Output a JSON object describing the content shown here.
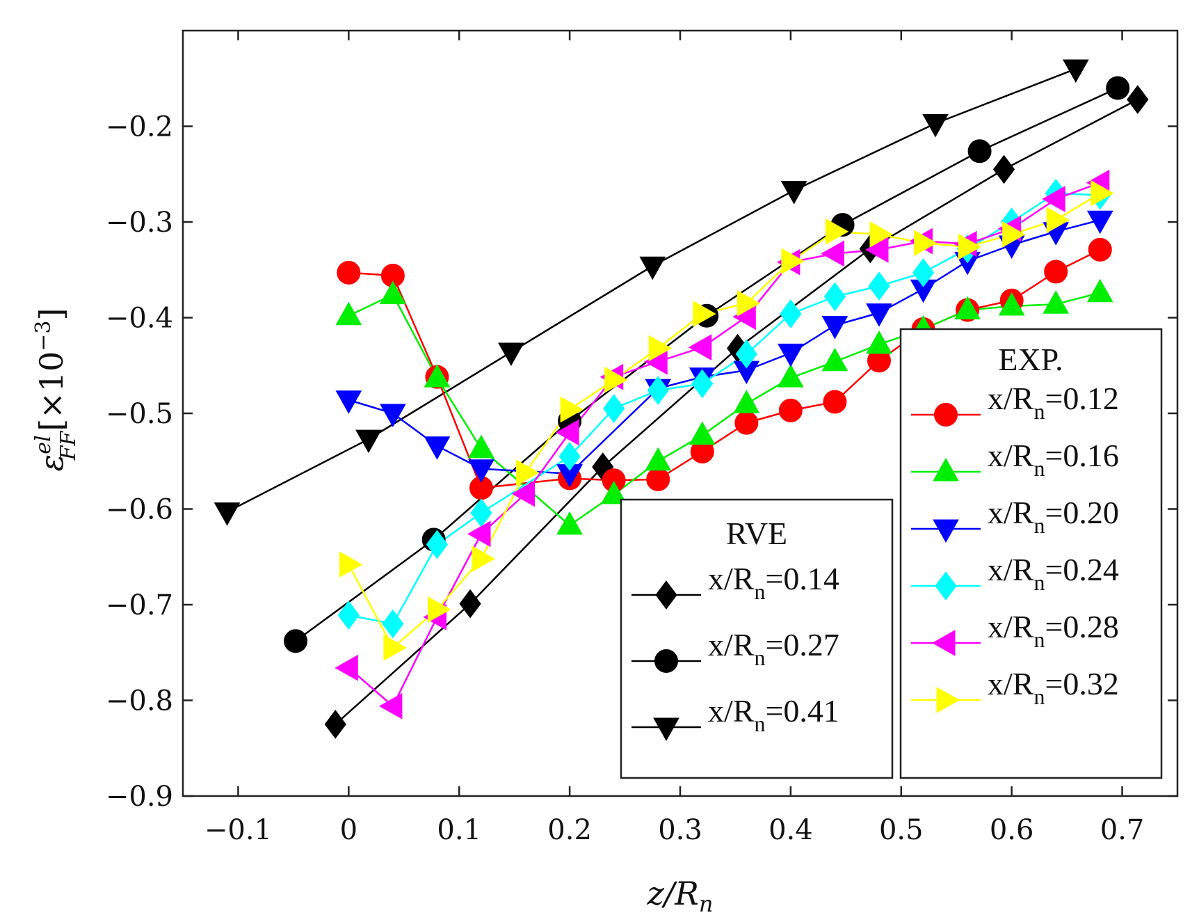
{
  "chart_data": {
    "type": "line",
    "xlabel": "z/R",
    "xlabel_sub": "n",
    "ylabel": "ε",
    "ylabel_sup": "el",
    "ylabel_sub": "FF",
    "ylabel_unit": "[×10",
    "ylabel_unit_exp": "−3",
    "ylabel_unit_close": "]",
    "xlim": [
      -0.15,
      0.75
    ],
    "ylim": [
      -0.9,
      -0.1
    ],
    "xticks": [
      -0.1,
      0,
      0.1,
      0.2,
      0.3,
      0.4,
      0.5,
      0.6,
      0.7
    ],
    "xtick_labels": [
      "−0.1",
      "0",
      "0.1",
      "0.2",
      "0.3",
      "0.4",
      "0.5",
      "0.6",
      "0.7"
    ],
    "yticks": [
      -0.9,
      -0.8,
      -0.7,
      -0.6,
      -0.5,
      -0.4,
      -0.3,
      -0.2
    ],
    "ytick_labels": [
      "−0.9",
      "−0.8",
      "−0.7",
      "−0.6",
      "−0.5",
      "−0.4",
      "−0.3",
      "−0.2"
    ],
    "legends": [
      {
        "title": "RVE",
        "entries": [
          "x/R",
          "x/R",
          "x/R"
        ],
        "subs": [
          "n",
          "n",
          "n"
        ],
        "values": [
          "=0.14",
          "=0.27",
          "=0.41"
        ]
      },
      {
        "title": "EXP.",
        "entries": [
          "x/R",
          "x/R",
          "x/R",
          "x/R",
          "x/R",
          "x/R"
        ],
        "subs": [
          "n",
          "n",
          "n",
          "n",
          "n",
          "n"
        ],
        "values": [
          "=0.12",
          "=0.16",
          "=0.20",
          "=0.24",
          "=0.28",
          "=0.32"
        ]
      }
    ],
    "series": [
      {
        "name": "RVE x/Rn=0.14",
        "group": "RVE",
        "color": "#000000",
        "marker": "diamond",
        "x": [
          -0.012,
          0.11,
          0.23,
          0.352,
          0.472,
          0.593,
          0.714
        ],
        "y": [
          -0.825,
          -0.699,
          -0.556,
          -0.432,
          -0.328,
          -0.245,
          -0.172
        ]
      },
      {
        "name": "RVE x/Rn=0.27",
        "group": "RVE",
        "color": "#000000",
        "marker": "circle",
        "x": [
          -0.048,
          0.077,
          0.2,
          0.324,
          0.447,
          0.571,
          0.696
        ],
        "y": [
          -0.738,
          -0.632,
          -0.508,
          -0.398,
          -0.303,
          -0.226,
          -0.16
        ]
      },
      {
        "name": "RVE x/Rn=0.41",
        "group": "RVE",
        "color": "#000000",
        "marker": "triangle-down",
        "x": [
          -0.11,
          0.018,
          0.147,
          0.275,
          0.403,
          0.531,
          0.658
        ],
        "y": [
          -0.603,
          -0.527,
          -0.436,
          -0.346,
          -0.267,
          -0.197,
          -0.14
        ]
      },
      {
        "name": "EXP x/Rn=0.12",
        "group": "EXP",
        "color": "#ff0000",
        "marker": "circle",
        "x": [
          0,
          0.04,
          0.08,
          0.12,
          0.2,
          0.24,
          0.28,
          0.32,
          0.36,
          0.4,
          0.44,
          0.48,
          0.52,
          0.56,
          0.6,
          0.64,
          0.68
        ],
        "y": [
          -0.353,
          -0.356,
          -0.462,
          -0.578,
          -0.568,
          -0.57,
          -0.569,
          -0.54,
          -0.51,
          -0.497,
          -0.488,
          -0.445,
          -0.412,
          -0.392,
          -0.382,
          -0.352,
          -0.329
        ]
      },
      {
        "name": "EXP x/Rn=0.16",
        "group": "EXP",
        "color": "#00ee00",
        "marker": "triangle-up",
        "x": [
          0,
          0.04,
          0.08,
          0.12,
          0.2,
          0.24,
          0.28,
          0.32,
          0.36,
          0.4,
          0.44,
          0.48,
          0.52,
          0.56,
          0.6,
          0.64,
          0.68
        ],
        "y": [
          -0.398,
          -0.376,
          -0.463,
          -0.537,
          -0.617,
          -0.585,
          -0.55,
          -0.523,
          -0.49,
          -0.463,
          -0.446,
          -0.428,
          -0.412,
          -0.392,
          -0.388,
          -0.386,
          -0.374
        ]
      },
      {
        "name": "EXP x/Rn=0.20",
        "group": "EXP",
        "color": "#0000ff",
        "marker": "triangle-down",
        "x": [
          0,
          0.04,
          0.08,
          0.12,
          0.2,
          0.28,
          0.32,
          0.36,
          0.4,
          0.44,
          0.48,
          0.52,
          0.56,
          0.6,
          0.64,
          0.68
        ],
        "y": [
          -0.486,
          -0.5,
          -0.534,
          -0.558,
          -0.563,
          -0.474,
          -0.462,
          -0.455,
          -0.437,
          -0.408,
          -0.395,
          -0.37,
          -0.341,
          -0.324,
          -0.31,
          -0.298
        ]
      },
      {
        "name": "EXP x/Rn=0.24",
        "group": "EXP",
        "color": "#00ffff",
        "marker": "diamond",
        "x": [
          0,
          0.04,
          0.08,
          0.12,
          0.2,
          0.24,
          0.28,
          0.32,
          0.36,
          0.4,
          0.44,
          0.48,
          0.52,
          0.56,
          0.6,
          0.64,
          0.68
        ],
        "y": [
          -0.711,
          -0.72,
          -0.637,
          -0.604,
          -0.545,
          -0.495,
          -0.476,
          -0.469,
          -0.438,
          -0.396,
          -0.378,
          -0.367,
          -0.353,
          -0.328,
          -0.3,
          -0.27,
          -0.272
        ]
      },
      {
        "name": "EXP x/Rn=0.28",
        "group": "EXP",
        "color": "#ff00ff",
        "marker": "triangle-left",
        "x": [
          0,
          0.04,
          0.08,
          0.12,
          0.16,
          0.2,
          0.24,
          0.28,
          0.32,
          0.36,
          0.4,
          0.44,
          0.48,
          0.52,
          0.56,
          0.6,
          0.64,
          0.68
        ],
        "y": [
          -0.766,
          -0.806,
          -0.713,
          -0.626,
          -0.584,
          -0.52,
          -0.462,
          -0.446,
          -0.431,
          -0.399,
          -0.342,
          -0.333,
          -0.329,
          -0.32,
          -0.323,
          -0.307,
          -0.276,
          -0.259
        ]
      },
      {
        "name": "EXP x/Rn=0.32",
        "group": "EXP",
        "color": "#ffff00",
        "marker": "triangle-right",
        "x": [
          0,
          0.04,
          0.08,
          0.12,
          0.16,
          0.2,
          0.24,
          0.28,
          0.32,
          0.36,
          0.4,
          0.44,
          0.48,
          0.52,
          0.56,
          0.6,
          0.64,
          0.68
        ],
        "y": [
          -0.658,
          -0.745,
          -0.705,
          -0.652,
          -0.562,
          -0.496,
          -0.465,
          -0.432,
          -0.396,
          -0.385,
          -0.341,
          -0.31,
          -0.313,
          -0.322,
          -0.326,
          -0.313,
          -0.298,
          -0.27
        ]
      }
    ]
  }
}
